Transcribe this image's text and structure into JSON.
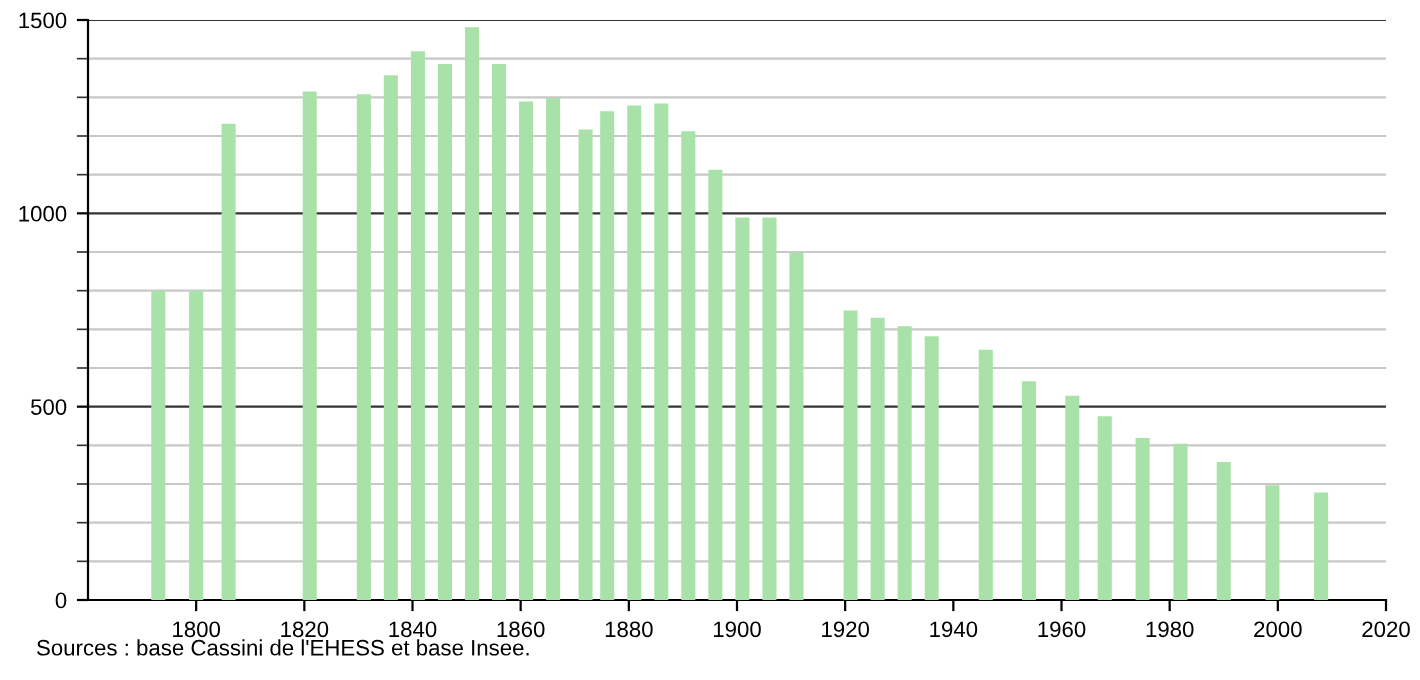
{
  "chart_data": {
    "type": "bar",
    "x": [
      1793,
      1800,
      1806,
      1821,
      1831,
      1836,
      1841,
      1846,
      1851,
      1856,
      1861,
      1866,
      1872,
      1876,
      1881,
      1886,
      1891,
      1896,
      1901,
      1906,
      1911,
      1921,
      1926,
      1931,
      1936,
      1946,
      1954,
      1962,
      1968,
      1975,
      1982,
      1990,
      1999,
      2008
    ],
    "values": [
      800,
      800,
      1232,
      1315,
      1308,
      1357,
      1419,
      1386,
      1481,
      1386,
      1289,
      1298,
      1217,
      1264,
      1279,
      1284,
      1212,
      1113,
      989,
      989,
      898,
      749,
      730,
      708,
      682,
      647,
      566,
      528,
      475,
      419,
      404,
      357,
      297,
      278
    ],
    "color": "#a8e2a8",
    "xlim": [
      1780,
      2020
    ],
    "xticks": [
      1800,
      1820,
      1840,
      1860,
      1880,
      1900,
      1920,
      1940,
      1960,
      1980,
      2000,
      2020
    ],
    "ylim": [
      0,
      1500
    ],
    "yticks": [
      0,
      500,
      1000,
      1500
    ],
    "grid": "y",
    "annotations": [
      "Sources : base Cassini de l'EHESS et base Insee."
    ]
  }
}
